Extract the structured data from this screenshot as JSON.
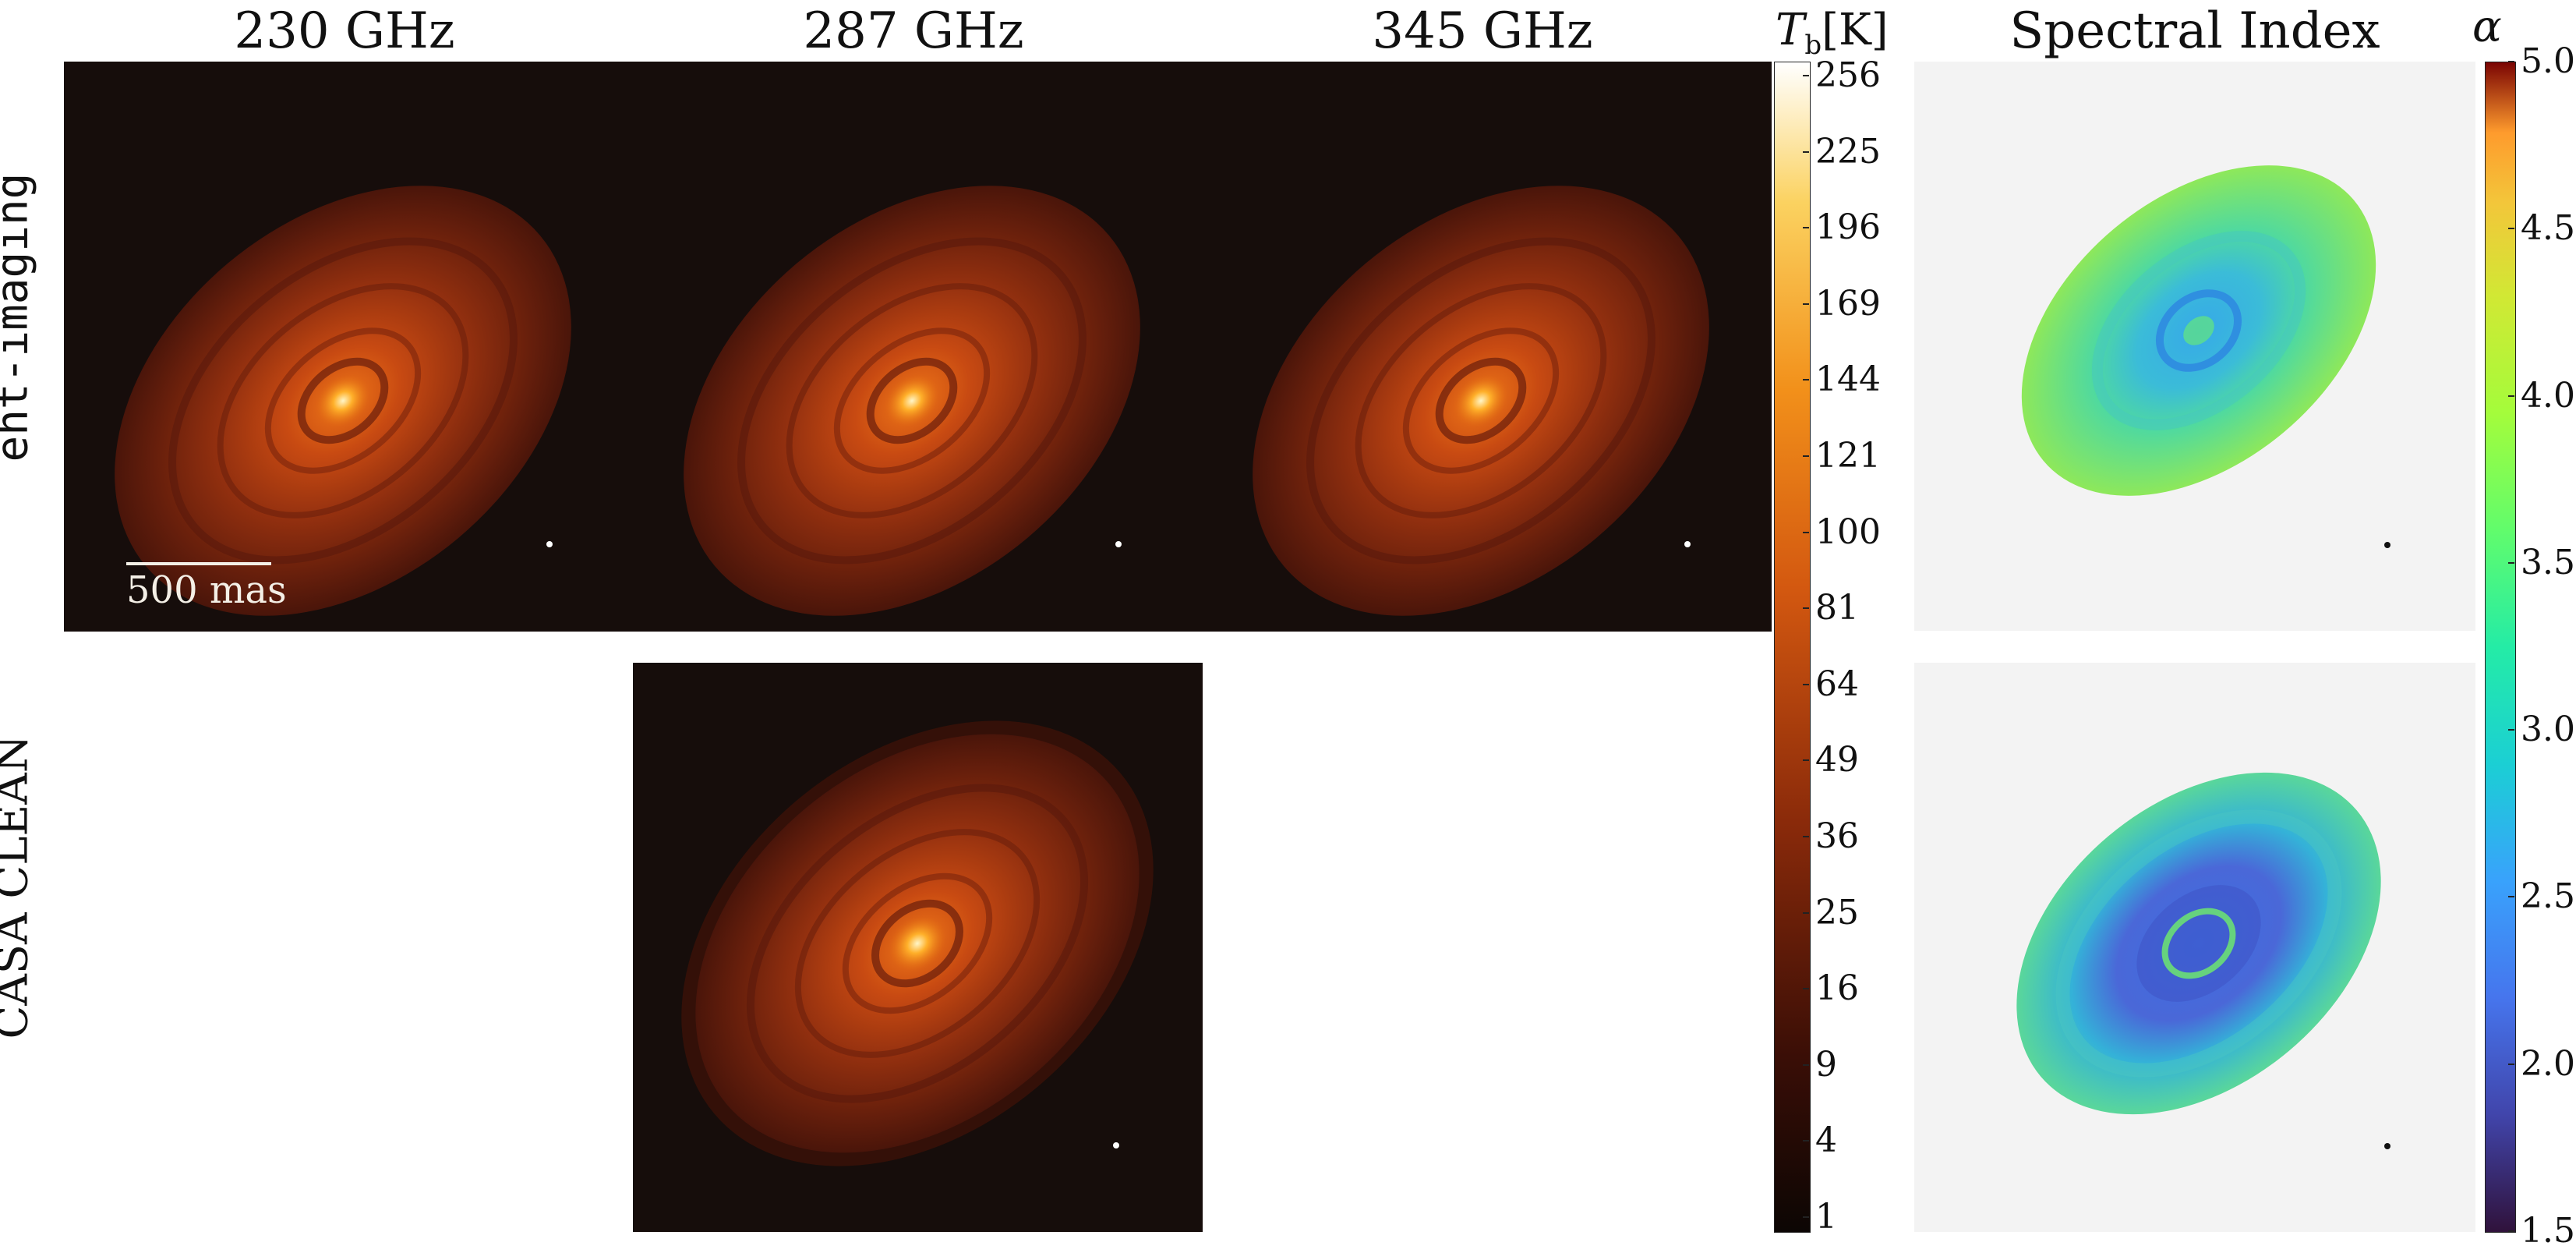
{
  "columns": [
    "230 GHz",
    "287 GHz",
    "345 GHz"
  ],
  "spectral_title": "Spectral Index",
  "rows": [
    "eht-imaging",
    "CASA CLEAN"
  ],
  "scalebar": "500 mas",
  "colorbar_tb": {
    "label_main": "T",
    "label_sub": "b",
    "label_unit": "[K]",
    "ticks": [
      "256",
      "225",
      "196",
      "169",
      "144",
      "121",
      "100",
      "81",
      "64",
      "49",
      "36",
      "25",
      "16",
      "9",
      "4",
      "1"
    ]
  },
  "colorbar_alpha": {
    "label": "α",
    "ticks": [
      "5.0",
      "4.5",
      "4.0",
      "3.5",
      "3.0",
      "2.5",
      "2.0",
      "1.5"
    ]
  },
  "chart_data": [
    {
      "type": "heatmap",
      "title": "230 GHz",
      "row": "eht-imaging",
      "colorbar": "T_b [K]",
      "colorbar_ticks": [
        256,
        225,
        196,
        169,
        144,
        121,
        100,
        81,
        64,
        49,
        36,
        25,
        16,
        9,
        4,
        1
      ]
    },
    {
      "type": "heatmap",
      "title": "287 GHz",
      "row": "eht-imaging",
      "colorbar": "T_b [K]"
    },
    {
      "type": "heatmap",
      "title": "345 GHz",
      "row": "eht-imaging",
      "colorbar": "T_b [K]"
    },
    {
      "type": "heatmap",
      "title": "287 GHz",
      "row": "CASA CLEAN",
      "colorbar": "T_b [K]"
    },
    {
      "type": "heatmap",
      "title": "Spectral Index",
      "row": "eht-imaging",
      "colorbar": "α",
      "colorbar_range": [
        1.5,
        5.0
      ],
      "colorbar_ticks": [
        5.0,
        4.5,
        4.0,
        3.5,
        3.0,
        2.5,
        2.0,
        1.5
      ]
    },
    {
      "type": "heatmap",
      "title": "Spectral Index",
      "row": "CASA CLEAN",
      "colorbar": "α",
      "colorbar_range": [
        1.5,
        5.0
      ]
    }
  ]
}
